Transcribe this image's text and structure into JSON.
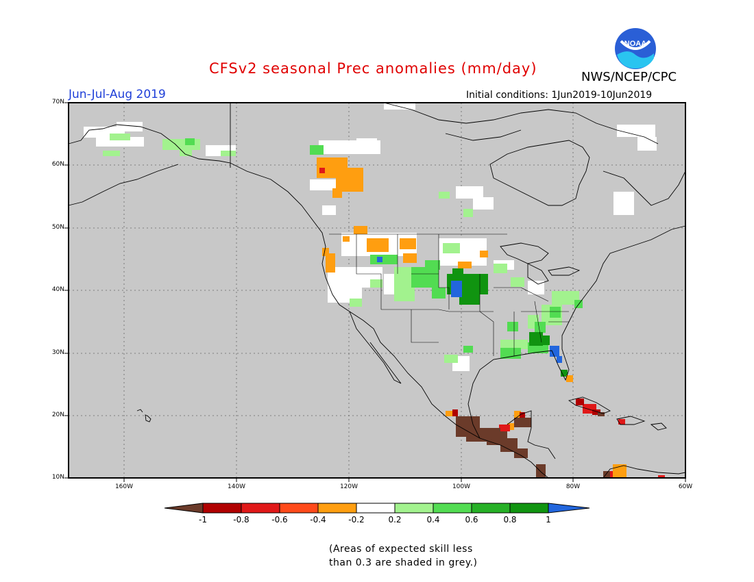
{
  "title": "CFSv2 seasonal Prec anomalies (mm/day)",
  "season": "Jun-Jul-Aug 2019",
  "initial_conditions": "Initial conditions: 1Jun2019-10Jun2019",
  "agency": "NWS/NCEP/CPC",
  "logo_text": "NOAA",
  "latitude_labels": [
    "70N",
    "60N",
    "50N",
    "40N",
    "30N",
    "20N",
    "10N"
  ],
  "longitude_labels": [
    "160W",
    "140W",
    "120W",
    "100W",
    "80W",
    "60W"
  ],
  "colorbar": {
    "ticks": [
      "-1",
      "-0.8",
      "-0.6",
      "-0.4",
      "-0.2",
      "0.2",
      "0.4",
      "0.6",
      "0.8",
      "1"
    ],
    "colors": [
      "#6b3b2a",
      "#b00000",
      "#e01818",
      "#ff4a1a",
      "#ff9e10",
      "#ffffff",
      "#a2f28e",
      "#52dc52",
      "#26b026",
      "#109410",
      "#2266dd"
    ]
  },
  "note_line1": "(Areas of expected skill less",
  "note_line2": "than 0.3 are shaded in grey.)",
  "colors": {
    "ocean_land_grey": "#c8c8c8",
    "title_red": "#e00000",
    "season_blue": "#1f3fd8"
  }
}
